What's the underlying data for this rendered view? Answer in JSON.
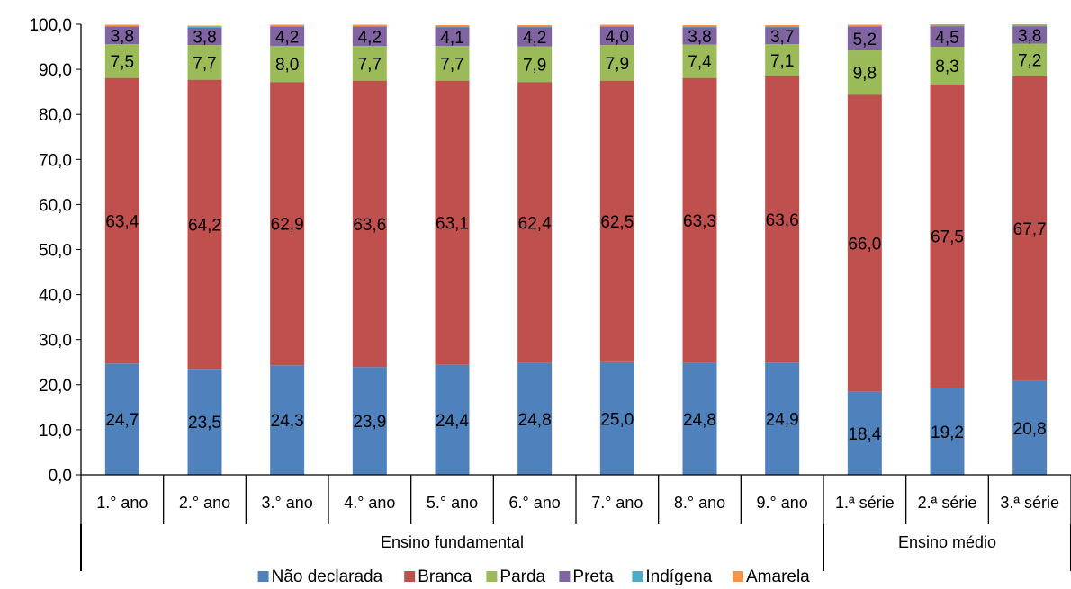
{
  "chart_data": {
    "type": "bar",
    "stacked": true,
    "title": "",
    "xlabel": "",
    "ylabel": "",
    "ylim": [
      0,
      100
    ],
    "yticks": [
      "0,0",
      "10,0",
      "20,0",
      "30,0",
      "40,0",
      "50,0",
      "60,0",
      "70,0",
      "80,0",
      "90,0",
      "100,0"
    ],
    "grid": false,
    "legend_position": "bottom",
    "categories": [
      "1.° ano",
      "2.° ano",
      "3.° ano",
      "4.° ano",
      "5.° ano",
      "6.° ano",
      "7.° ano",
      "8.° ano",
      "9.° ano",
      "1.ª série",
      "2.ª série",
      "3.ª série"
    ],
    "category_labels": [
      "1.° ano",
      "2.° ano",
      "3.° ano",
      "4.° ano",
      "5.° ano",
      "6.° ano",
      "7.° ano",
      "8.° ano",
      "9.° ano",
      "1.ª série",
      "2.ª série",
      "3.ª série"
    ],
    "groups": [
      {
        "label": "Ensino fundamental",
        "count": 9
      },
      {
        "label": "Ensino médio",
        "count": 3
      }
    ],
    "series": [
      {
        "name": "Não declarada",
        "color": "#4F81BD",
        "values": [
          24.7,
          23.5,
          24.3,
          23.9,
          24.4,
          24.8,
          25.0,
          24.8,
          24.9,
          18.4,
          19.2,
          20.8
        ],
        "labels": [
          "24,7",
          "23,5",
          "24,3",
          "23,9",
          "24,4",
          "24,8",
          "25,0",
          "24,8",
          "24,9",
          "18,4",
          "19,2",
          "20,8"
        ]
      },
      {
        "name": "Branca",
        "color": "#C0504D",
        "values": [
          63.4,
          64.2,
          62.9,
          63.6,
          63.1,
          62.4,
          62.5,
          63.3,
          63.6,
          66.0,
          67.5,
          67.7
        ],
        "labels": [
          "63,4",
          "64,2",
          "62,9",
          "63,6",
          "63,1",
          "62,4",
          "62,5",
          "63,3",
          "63,6",
          "66,0",
          "67,5",
          "67,7"
        ]
      },
      {
        "name": "Parda",
        "color": "#9BBB59",
        "values": [
          7.5,
          7.7,
          8.0,
          7.7,
          7.7,
          7.9,
          7.9,
          7.4,
          7.1,
          9.8,
          8.3,
          7.2
        ],
        "labels": [
          "7,5",
          "7,7",
          "8,0",
          "7,7",
          "7,7",
          "7,9",
          "7,9",
          "7,4",
          "7,1",
          "9,8",
          "8,3",
          "7,2"
        ]
      },
      {
        "name": "Preta",
        "color": "#8064A2",
        "values": [
          3.8,
          3.8,
          4.2,
          4.2,
          4.1,
          4.2,
          4.0,
          3.8,
          3.7,
          5.2,
          4.5,
          3.8
        ],
        "labels": [
          "3,8",
          "3,8",
          "4,2",
          "4,2",
          "4,1",
          "4,2",
          "4,0",
          "3,8",
          "3,7",
          "5,2",
          "4,5",
          "3,8"
        ]
      },
      {
        "name": "Indígena",
        "color": "#4BACC6",
        "values": [
          0.2,
          0.2,
          0.2,
          0.2,
          0.2,
          0.2,
          0.2,
          0.2,
          0.2,
          0.2,
          0.2,
          0.2
        ]
      },
      {
        "name": "Amarela",
        "color": "#F79646",
        "values": [
          0.3,
          0.3,
          0.3,
          0.3,
          0.3,
          0.3,
          0.3,
          0.3,
          0.3,
          0.3,
          0.3,
          0.3
        ]
      }
    ]
  }
}
